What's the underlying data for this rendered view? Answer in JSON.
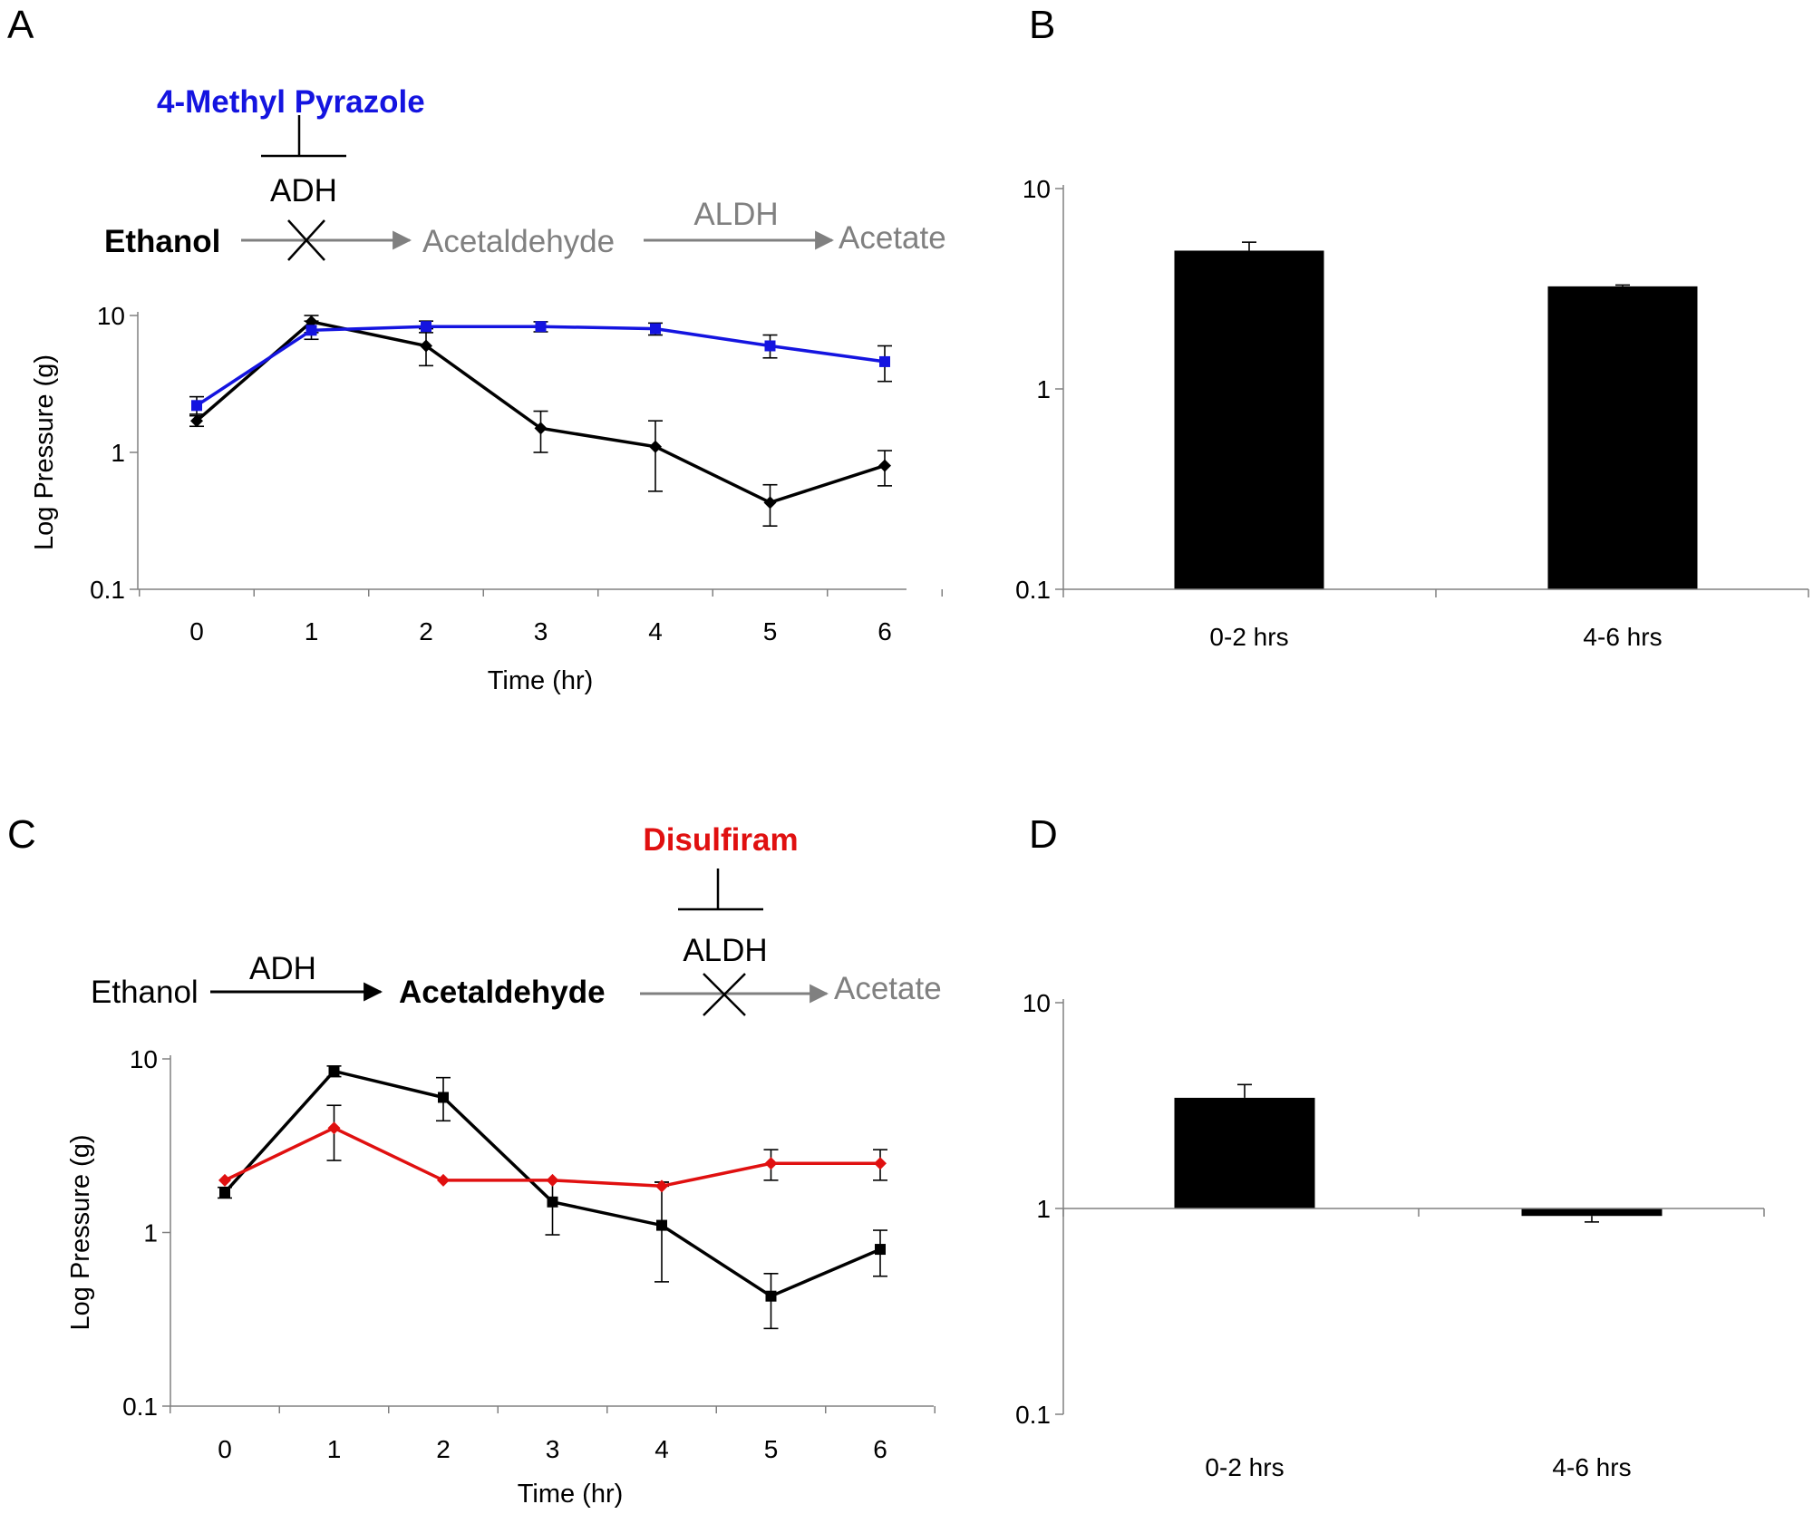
{
  "colors": {
    "black": "#000000",
    "blue": "#1414e0",
    "red": "#e01010",
    "gray": "#808080"
  },
  "panels": {
    "A": {
      "letter": "A",
      "inhibitor": "4-Methyl Pyrazole",
      "substrate": "Ethanol",
      "enzyme1": "ADH",
      "intermediate": "Acetaldehyde",
      "enzyme2": "ALDH",
      "product": "Acetate"
    },
    "B": {
      "letter": "B"
    },
    "C": {
      "letter": "C",
      "inhibitor": "Disulfiram",
      "substrate": "Ethanol",
      "enzyme1": "ADH",
      "intermediate": "Acetaldehyde",
      "enzyme2": "ALDH",
      "product": "Acetate"
    },
    "D": {
      "letter": "D"
    }
  },
  "chart_data": [
    {
      "panel": "A",
      "type": "line",
      "xlabel": "Time (hr)",
      "ylabel": "Log Pressure (g)",
      "yscale": "log",
      "ylim": [
        0.1,
        10
      ],
      "yticks": [
        "0.1",
        "1",
        "10"
      ],
      "x": [
        0,
        1,
        2,
        3,
        4,
        5,
        6
      ],
      "series": [
        {
          "color": "#000000",
          "marker": "diamond",
          "values": [
            1.7,
            9.0,
            6.0,
            1.5,
            1.1,
            0.43,
            0.8
          ],
          "err_low": [
            1.55,
            7.5,
            4.3,
            1.0,
            0.52,
            0.29,
            0.57
          ],
          "err_high": [
            1.85,
            10.0,
            8.0,
            2.0,
            1.7,
            0.58,
            1.03
          ]
        },
        {
          "color": "#1414e0",
          "marker": "square",
          "values": [
            2.2,
            7.8,
            8.3,
            8.3,
            8.0,
            6.0,
            4.6
          ],
          "err_low": [
            1.9,
            6.7,
            7.5,
            7.6,
            7.2,
            4.9,
            3.3
          ],
          "err_high": [
            2.55,
            9.1,
            9.1,
            9.0,
            8.8,
            7.2,
            6.0
          ]
        }
      ]
    },
    {
      "panel": "B",
      "type": "bar",
      "yscale": "log",
      "ylim": [
        0.1,
        10
      ],
      "yticks": [
        "0.1",
        "1",
        "10"
      ],
      "categories": [
        "0-2 hrs",
        "4-6 hrs"
      ],
      "values": [
        4.9,
        3.25
      ],
      "err_high": [
        5.4,
        3.3
      ]
    },
    {
      "panel": "C",
      "type": "line",
      "xlabel": "Time (hr)",
      "ylabel": "Log Pressure (g)",
      "yscale": "log",
      "ylim": [
        0.1,
        10
      ],
      "yticks": [
        "0.1",
        "1",
        "10"
      ],
      "x": [
        0,
        1,
        2,
        3,
        4,
        5,
        6
      ],
      "series": [
        {
          "color": "#000000",
          "marker": "square",
          "values": [
            1.7,
            8.5,
            6.0,
            1.5,
            1.1,
            0.43,
            0.8
          ],
          "err_low": [
            1.58,
            7.9,
            4.4,
            0.97,
            0.52,
            0.28,
            0.56
          ],
          "err_high": [
            1.82,
            9.1,
            7.8,
            2.0,
            1.95,
            0.58,
            1.03
          ]
        },
        {
          "color": "#e01010",
          "marker": "diamond",
          "values": [
            2.0,
            4.0,
            2.0,
            2.0,
            1.85,
            2.5,
            2.5
          ],
          "err_low": [
            2.0,
            2.6,
            2.0,
            2.0,
            1.85,
            2.0,
            2.0
          ],
          "err_high": [
            2.0,
            5.4,
            2.0,
            2.0,
            1.95,
            3.0,
            3.0
          ]
        }
      ]
    },
    {
      "panel": "D",
      "type": "bar",
      "yscale": "log",
      "ylim": [
        0.1,
        10
      ],
      "yticks": [
        "0.1",
        "1",
        "10"
      ],
      "baseline": 1,
      "categories": [
        "0-2 hrs",
        "4-6 hrs"
      ],
      "values": [
        3.45,
        0.92
      ],
      "err_high": [
        4.0,
        0.86
      ]
    }
  ]
}
